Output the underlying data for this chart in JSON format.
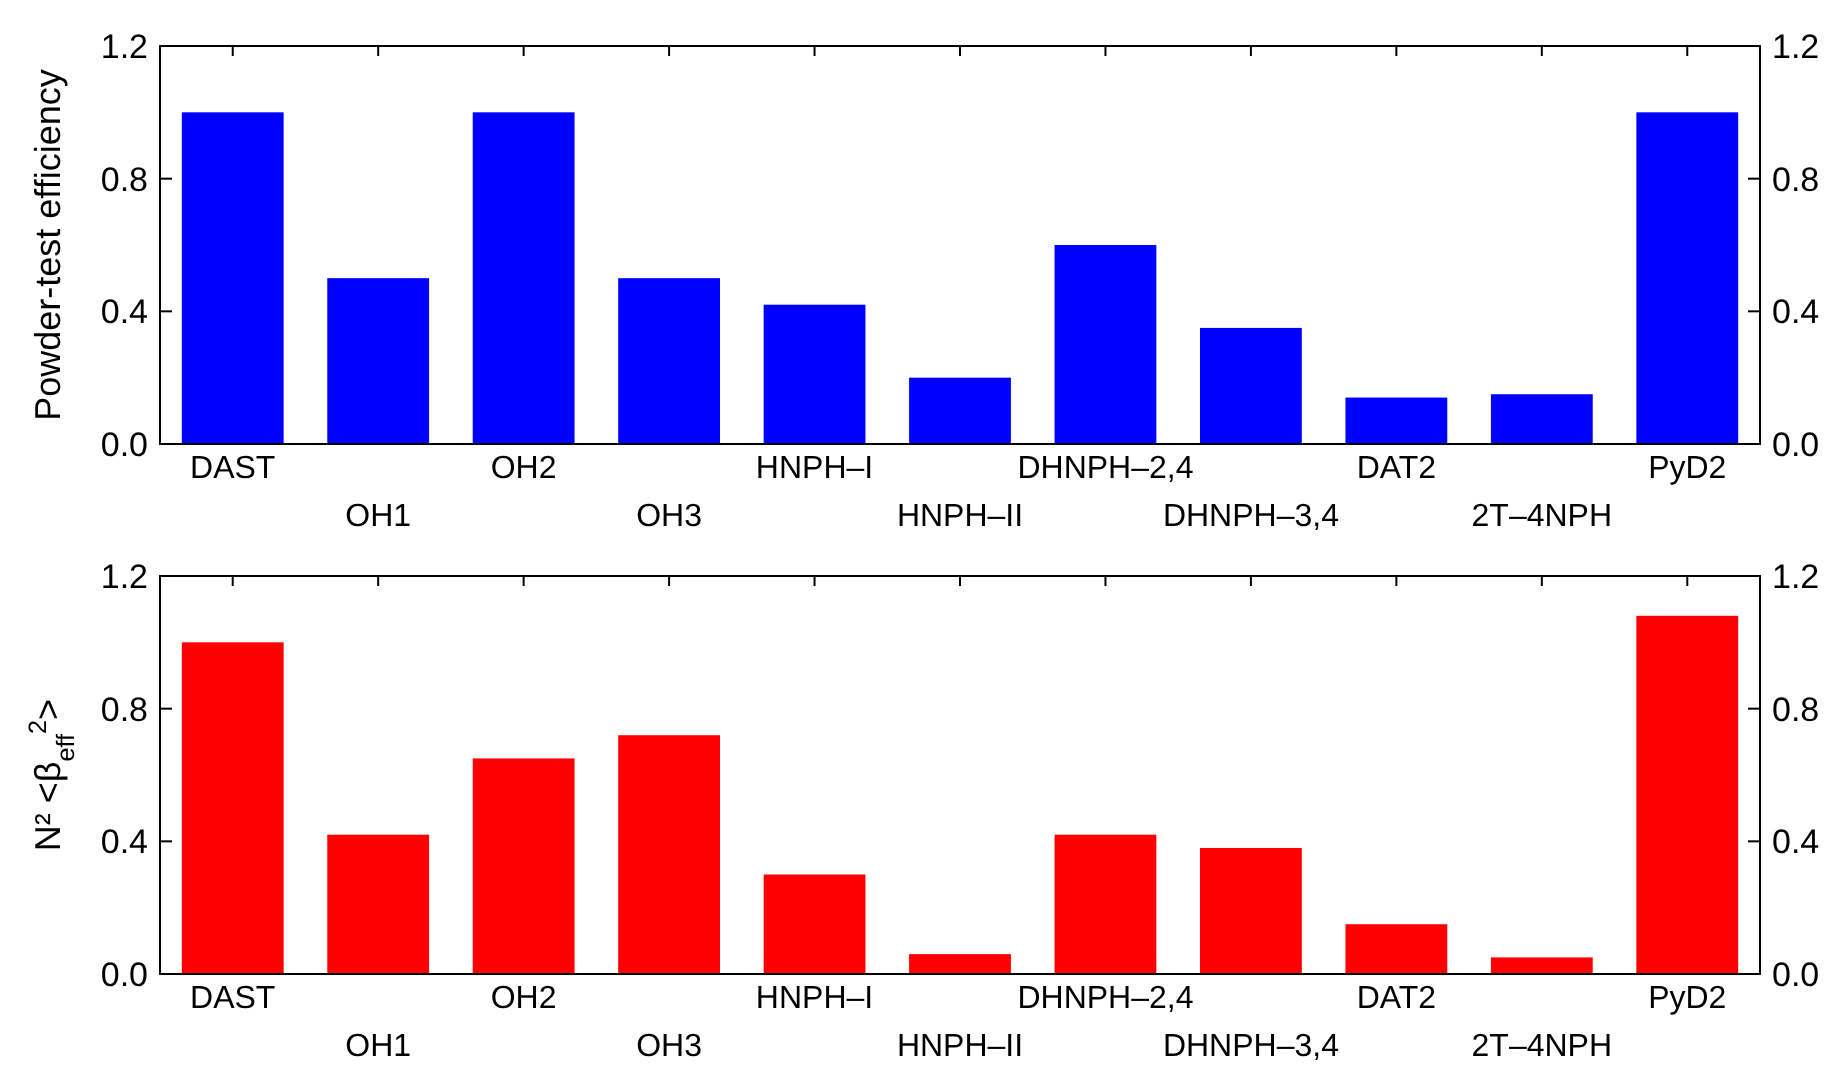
{
  "chart_data": [
    {
      "type": "bar",
      "ylabel": "Powder-test efficiency",
      "categories": [
        "DAST",
        "OH1",
        "OH2",
        "OH3",
        "HNPH–I",
        "HNPH–II",
        "DHNPH–2,4",
        "DHNPH–3,4",
        "DAT2",
        "2T–4NPH",
        "PyD2"
      ],
      "series": [
        {
          "color": "#0000ff",
          "values": [
            1.0,
            0.5,
            1.0,
            0.5,
            0.42,
            0.2,
            0.6,
            0.35,
            0.14,
            0.15,
            1.0
          ]
        }
      ],
      "ylim": [
        0,
        1.2
      ],
      "yticks": [
        {
          "value": 0,
          "label": "0.0"
        },
        {
          "value": 0.4,
          "label": "0.4"
        },
        {
          "value": 0.8,
          "label": "0.8"
        },
        {
          "value": 1.2,
          "label": "1.2"
        }
      ],
      "y2lim": [
        0,
        1.2
      ],
      "y2ticks": [
        {
          "value": 0,
          "label": "0.0"
        },
        {
          "value": 0.4,
          "label": "0.4"
        },
        {
          "value": 0.8,
          "label": "0.8"
        },
        {
          "value": 1.2,
          "label": "1.2"
        }
      ],
      "grid": false
    },
    {
      "type": "bar",
      "ylabel": "N² <β$_{eff}$$^{2}$>",
      "categories": [
        "DAST",
        "OH1",
        "OH2",
        "OH3",
        "HNPH–I",
        "HNPH–II",
        "DHNPH–2,4",
        "DHNPH–3,4",
        "DAT2",
        "2T–4NPH",
        "PyD2"
      ],
      "series": [
        {
          "color": "#ff0000",
          "values": [
            1.0,
            0.42,
            0.65,
            0.72,
            0.3,
            0.06,
            0.42,
            0.38,
            0.15,
            0.05,
            1.08
          ]
        }
      ],
      "ylim": [
        0,
        1.2
      ],
      "yticks": [
        {
          "value": 0,
          "label": "0.0"
        },
        {
          "value": 0.4,
          "label": "0.4"
        },
        {
          "value": 0.8,
          "label": "0.8"
        },
        {
          "value": 1.2,
          "label": "1.2"
        }
      ],
      "y2lim": [
        0,
        1.2
      ],
      "y2ticks": [
        {
          "value": 0,
          "label": "0.0"
        },
        {
          "value": 0.4,
          "label": "0.4"
        },
        {
          "value": 0.8,
          "label": "0.8"
        },
        {
          "value": 1.2,
          "label": "1.2"
        }
      ],
      "grid": false
    }
  ]
}
